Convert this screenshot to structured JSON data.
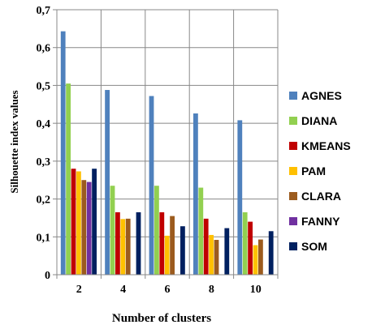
{
  "chart_data": {
    "type": "bar",
    "categories": [
      "2",
      "4",
      "6",
      "8",
      "10"
    ],
    "xlabel": "Number of clusters",
    "ylabel": "Silhouette index values",
    "ylim": [
      0,
      0.7
    ],
    "yticks": [
      "0",
      "0,1",
      "0,2",
      "0,3",
      "0,4",
      "0,5",
      "0,6",
      "0,7"
    ],
    "grid": true,
    "legend_position": "right",
    "series": [
      {
        "name": "AGNES",
        "color": "#4F81BD",
        "values": [
          0.643,
          0.488,
          0.472,
          0.426,
          0.408
        ]
      },
      {
        "name": "DIANA",
        "color": "#92D050",
        "values": [
          0.505,
          0.235,
          0.235,
          0.23,
          0.165
        ]
      },
      {
        "name": "KMEANS",
        "color": "#C00000",
        "values": [
          0.28,
          0.165,
          0.165,
          0.148,
          0.14
        ]
      },
      {
        "name": "PAM",
        "color": "#FFC000",
        "values": [
          0.273,
          0.147,
          0.103,
          0.105,
          0.078
        ]
      },
      {
        "name": "CLARA",
        "color": "#9C5B1E",
        "values": [
          0.25,
          0.148,
          0.155,
          0.092,
          0.093
        ]
      },
      {
        "name": "FANNY",
        "color": "#7030A0",
        "values": [
          0.245,
          0.0,
          0.0,
          0.0,
          0.0
        ]
      },
      {
        "name": "SOM",
        "color": "#002060",
        "values": [
          0.28,
          0.165,
          0.128,
          0.123,
          0.115
        ]
      }
    ]
  }
}
